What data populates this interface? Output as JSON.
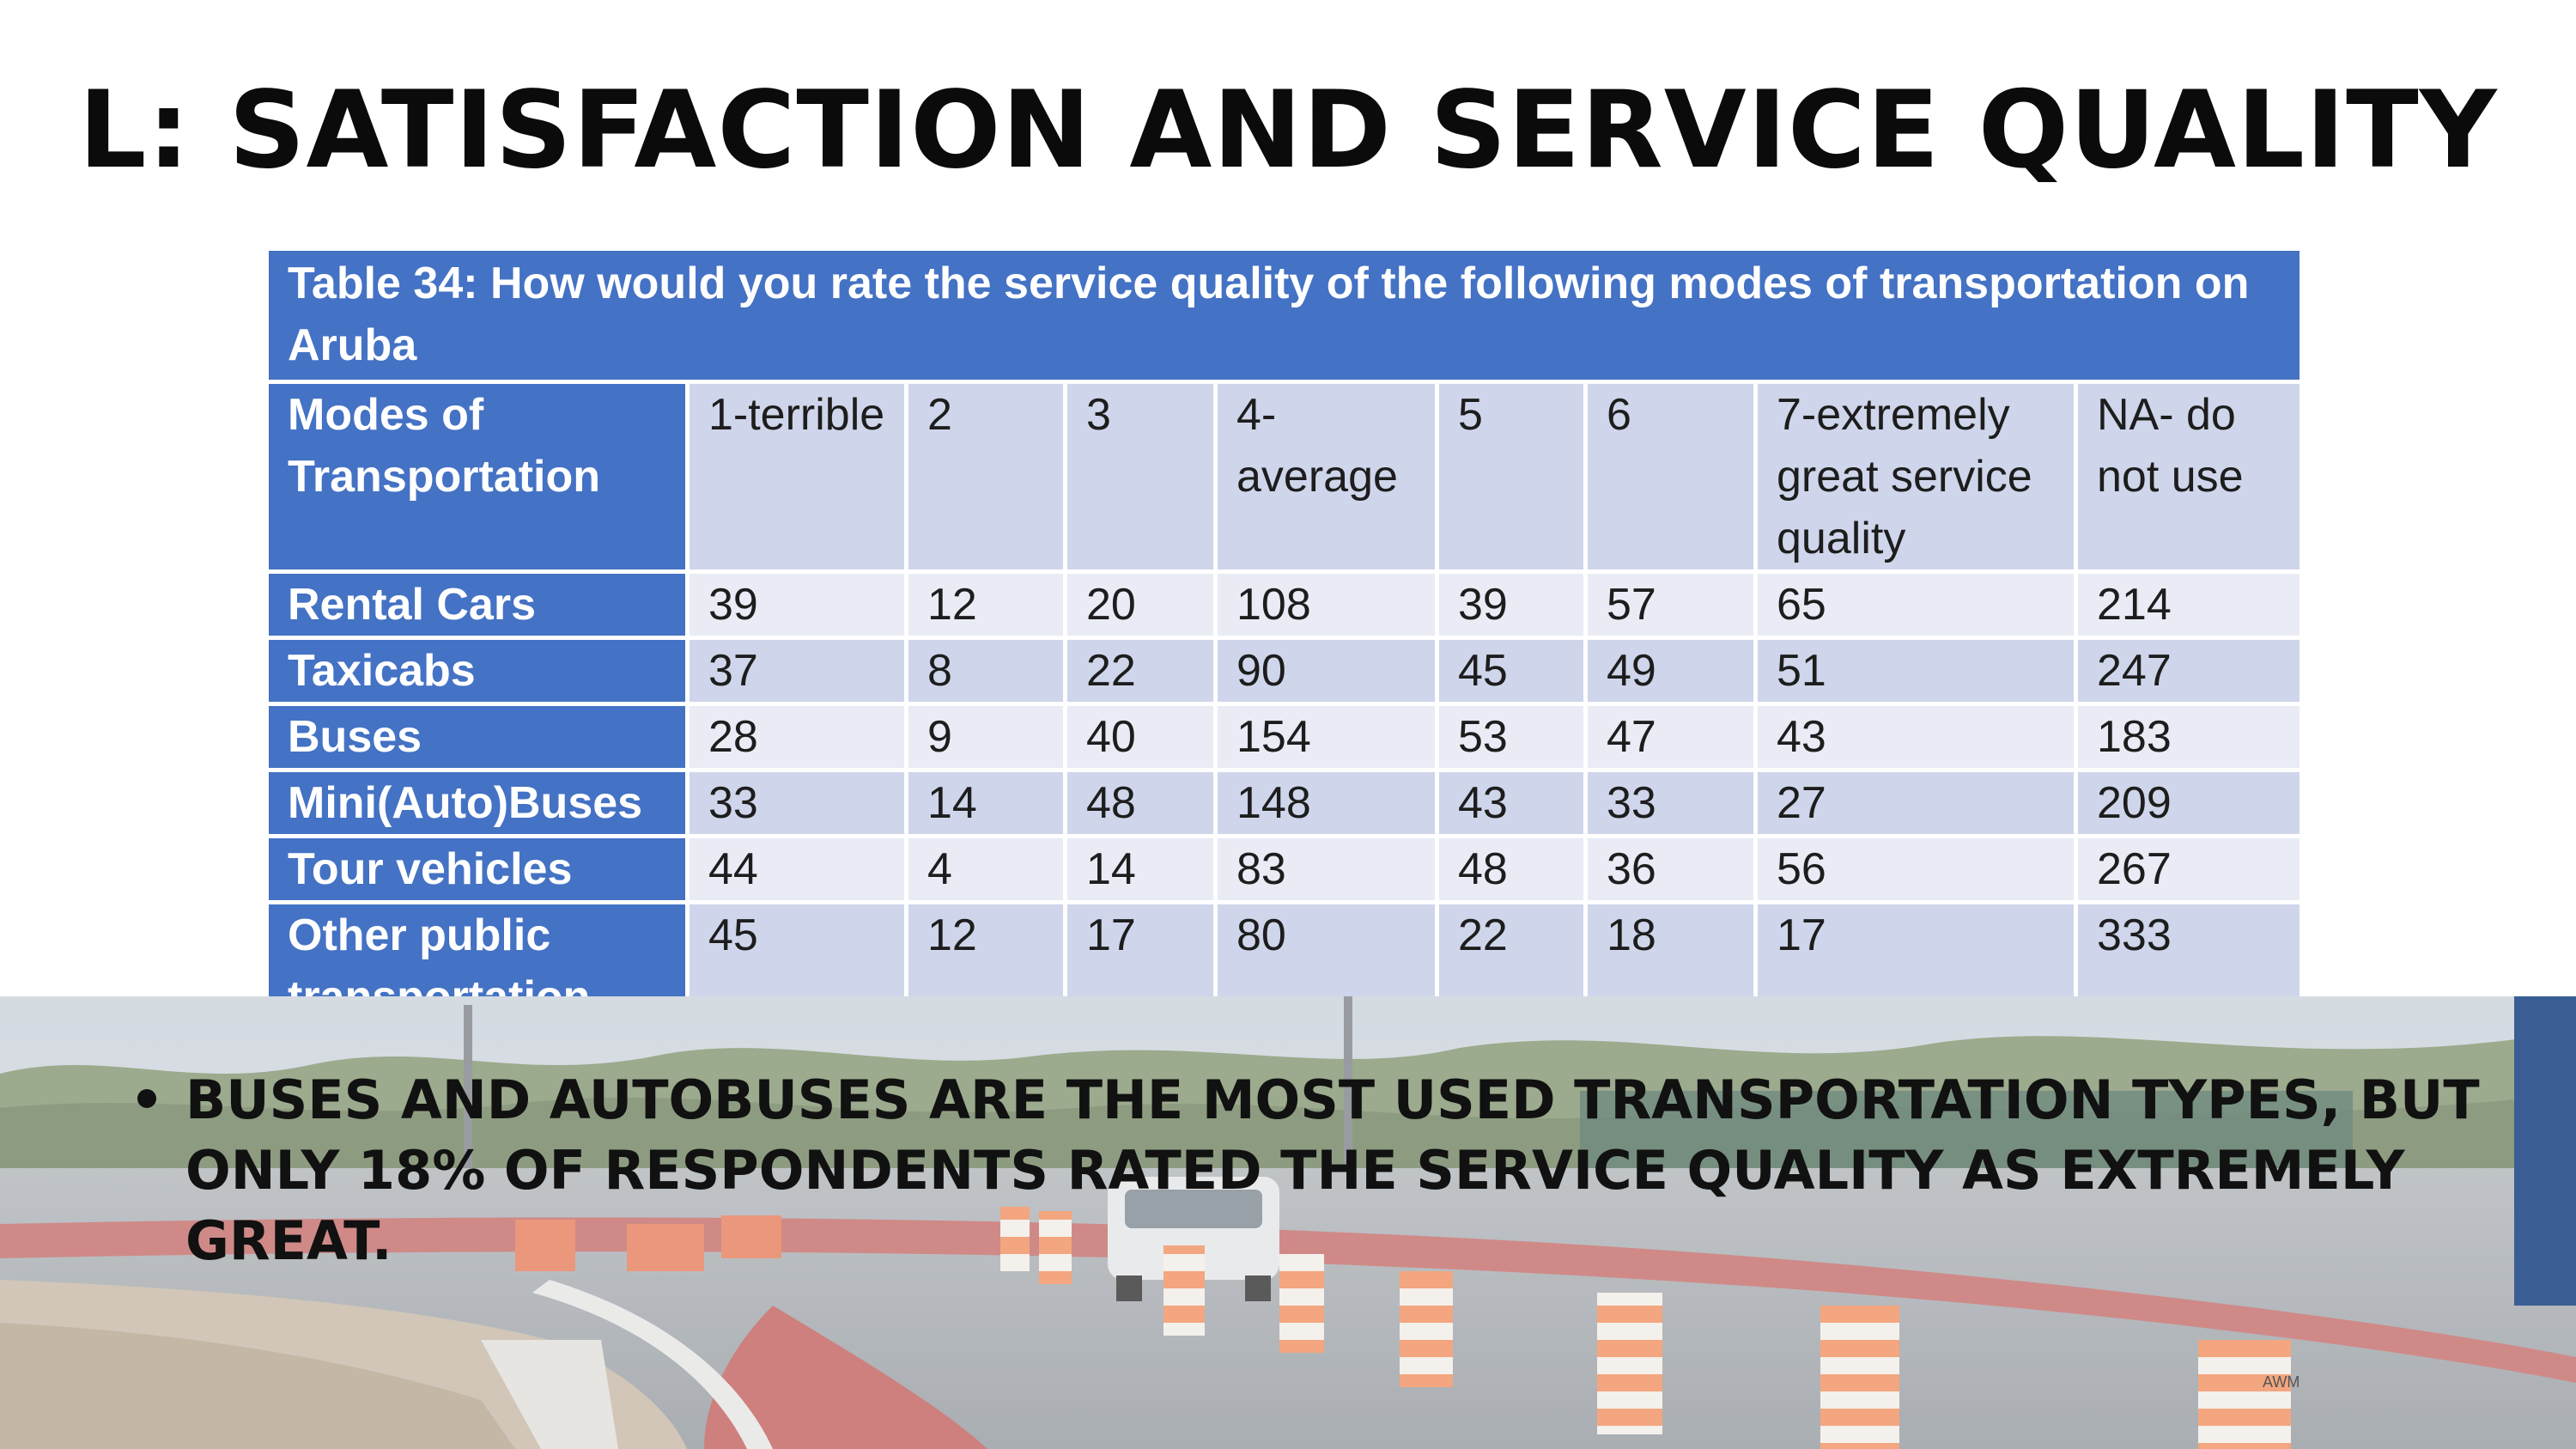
{
  "slide": {
    "title": "L: SATISFACTION AND SERVICE QUALITY",
    "bullet": "BUSES AND AUTOBUSES ARE THE MOST USED TRANSPORTATION TYPES, BUT ONLY 18% OF RESPONDENTS RATED THE SERVICE QUALITY AS EXTREMELY GREAT."
  },
  "table": {
    "caption": "Table 34: How would you rate the service quality of the following modes of transportation on Aruba",
    "headers": [
      "Modes of Transportation",
      "1-terrible",
      "2",
      "3",
      "4-average",
      "5",
      "6",
      "7-extremely great service quality",
      "NA- do not use"
    ],
    "rows": [
      {
        "mode": "Rental Cars",
        "values": [
          "39",
          "12",
          "20",
          "108",
          "39",
          "57",
          "65",
          "214"
        ]
      },
      {
        "mode": "Taxicabs",
        "values": [
          "37",
          "8",
          "22",
          "90",
          "45",
          "49",
          "51",
          "247"
        ]
      },
      {
        "mode": "Buses",
        "values": [
          "28",
          "9",
          "40",
          "154",
          "53",
          "47",
          "43",
          "183"
        ]
      },
      {
        "mode": "Mini(Auto)Buses",
        "values": [
          "33",
          "14",
          "48",
          "148",
          "43",
          "33",
          "27",
          "209"
        ]
      },
      {
        "mode": "Tour vehicles",
        "values": [
          "44",
          "4",
          "14",
          "83",
          "48",
          "36",
          "56",
          "267"
        ]
      },
      {
        "mode": "Other public transportation",
        "values": [
          "45",
          "12",
          "17",
          "80",
          "22",
          "18",
          "17",
          "333"
        ]
      }
    ]
  },
  "photo": {
    "sign_text": "AWM"
  },
  "colors": {
    "table_header_blue": "#4472c4",
    "row_light": "#e9ebf5",
    "row_dark": "#cfd5ea",
    "side_bar": "#3a5e94"
  }
}
